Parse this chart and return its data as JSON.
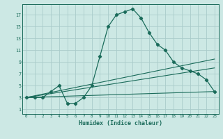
{
  "title": "",
  "xlabel": "Humidex (Indice chaleur)",
  "background_color": "#cce8e4",
  "grid_color": "#aaccca",
  "line_color": "#1a6b5a",
  "x_ticks": [
    0,
    1,
    2,
    3,
    4,
    5,
    6,
    7,
    8,
    9,
    10,
    11,
    12,
    13,
    14,
    15,
    16,
    17,
    18,
    19,
    20,
    21,
    22,
    23
  ],
  "y_ticks": [
    1,
    3,
    5,
    7,
    9,
    11,
    13,
    15,
    17
  ],
  "ylim": [
    0.2,
    18.8
  ],
  "xlim": [
    -0.5,
    23.5
  ],
  "series": [
    {
      "x": [
        0,
        1,
        2,
        3,
        4,
        5,
        6,
        7,
        8,
        9,
        10,
        11,
        12,
        13,
        14,
        15,
        16,
        17,
        18,
        19,
        20,
        21,
        22,
        23
      ],
      "y": [
        3,
        3,
        3,
        4,
        5,
        2,
        2,
        3,
        5,
        10,
        15,
        17,
        17.5,
        18,
        16.5,
        14,
        12,
        11,
        9,
        8,
        7.5,
        7,
        6,
        4
      ],
      "marker": "D",
      "markersize": 2.2,
      "linewidth": 0.9
    },
    {
      "x": [
        0,
        23
      ],
      "y": [
        3,
        4
      ],
      "marker": null,
      "linewidth": 0.8
    },
    {
      "x": [
        0,
        23
      ],
      "y": [
        3,
        8
      ],
      "marker": null,
      "linewidth": 0.8
    },
    {
      "x": [
        0,
        23
      ],
      "y": [
        3,
        9.5
      ],
      "marker": null,
      "linewidth": 0.8
    }
  ]
}
